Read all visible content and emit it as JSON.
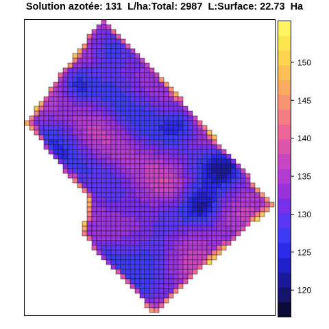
{
  "chart_data": {
    "type": "heatmap",
    "title": "Solution azotée: 131  L/ha:Total: 2987  L:Surface: 22.73  Ha",
    "subtitle": "",
    "xlabel": "",
    "ylabel": "",
    "colorbar": {
      "range": [
        116.5,
        155.5
      ],
      "ticks": [
        120,
        125,
        130,
        135,
        140,
        145,
        150
      ],
      "tick_labels": [
        "120",
        "125",
        "130",
        "135",
        "140",
        "145",
        "150"
      ],
      "colors": [
        "#0d0a3a",
        "#15146a",
        "#1a1a9a",
        "#2020c8",
        "#2a2ae8",
        "#3d3cf4",
        "#5a37f0",
        "#7a2fe8",
        "#9a33dc",
        "#b13cd2",
        "#c846c2",
        "#dc55ad",
        "#ec6797",
        "#f47c84",
        "#f89472",
        "#fbaa62",
        "#fcc056",
        "#fcd44f",
        "#fde64d",
        "#fff462"
      ]
    },
    "grid": false,
    "legend": "right"
  }
}
